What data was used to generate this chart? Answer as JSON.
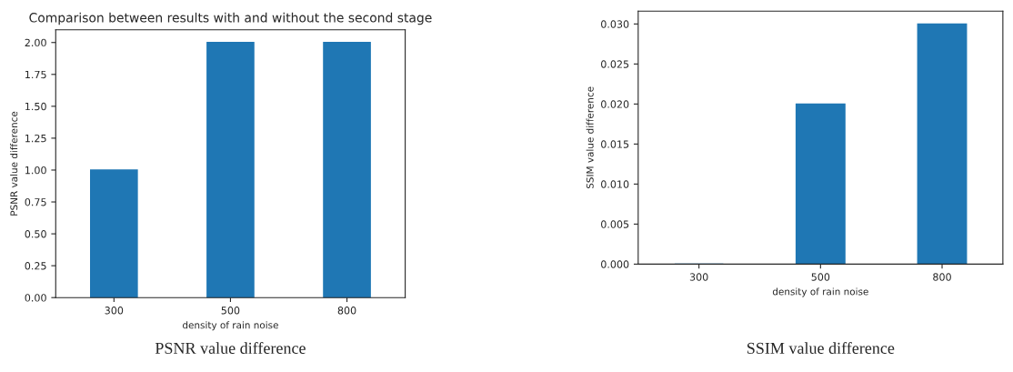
{
  "chart_data": [
    {
      "type": "bar",
      "title": "Comparison between results with and without the second stage",
      "xlabel": "density of rain noise",
      "ylabel": "PSNR value difference",
      "categories": [
        "300",
        "500",
        "800"
      ],
      "values": [
        1,
        2,
        2
      ],
      "color": "#1f77b4",
      "ylim": [
        0,
        2.1
      ],
      "yticks": [
        {
          "value": 0,
          "label": "0.00"
        },
        {
          "value": 0.25,
          "label": "0.25"
        },
        {
          "value": 0.5,
          "label": "0.50"
        },
        {
          "value": 0.75,
          "label": "0.75"
        },
        {
          "value": 1,
          "label": "1.00"
        },
        {
          "value": 1.25,
          "label": "1.25"
        },
        {
          "value": 1.5,
          "label": "1.50"
        },
        {
          "value": 1.75,
          "label": "1.75"
        },
        {
          "value": 2,
          "label": "2.00"
        }
      ],
      "grid": false,
      "annotations": [
        "PSNR value difference"
      ]
    },
    {
      "type": "bar",
      "xlabel": "density of rain noise",
      "ylabel": "SSIM value difference",
      "categories": [
        "300",
        "500",
        "800"
      ],
      "values": [
        0,
        0.02,
        0.03
      ],
      "color": "#1f77b4",
      "ylim": [
        0,
        0.0316
      ],
      "yticks": [
        {
          "value": 0,
          "label": "0.000"
        },
        {
          "value": 0.005,
          "label": "0.005"
        },
        {
          "value": 0.01,
          "label": "0.010"
        },
        {
          "value": 0.015,
          "label": "0.015"
        },
        {
          "value": 0.02,
          "label": "0.020"
        },
        {
          "value": 0.025,
          "label": "0.025"
        },
        {
          "value": 0.03,
          "label": "0.030"
        }
      ],
      "grid": false,
      "annotations": [
        "SSIM value difference"
      ]
    }
  ]
}
